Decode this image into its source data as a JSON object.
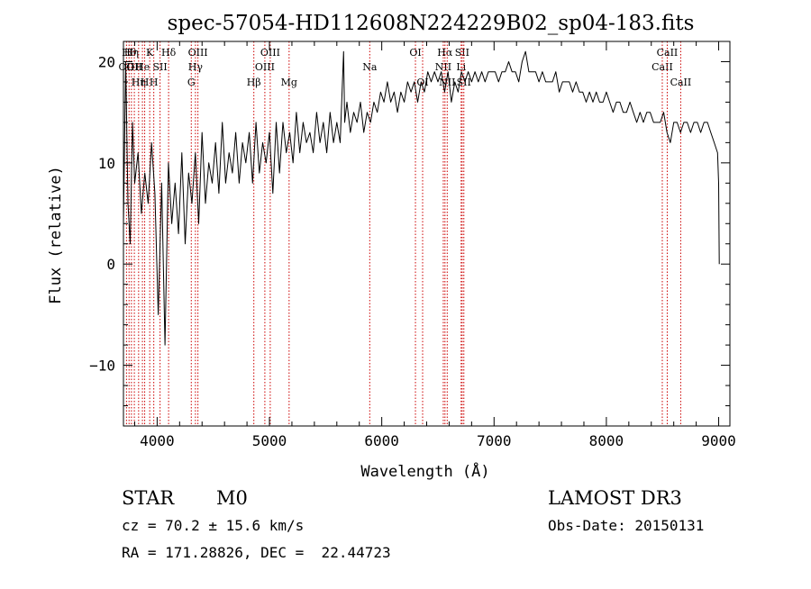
{
  "chart_data": {
    "type": "line",
    "title": "spec-57054-HD112608N224229B02_sp04-183.fits",
    "xlabel": "Wavelength (Å)",
    "ylabel": "Flux (relative)",
    "xlim": [
      3700,
      9100
    ],
    "ylim": [
      -16,
      22
    ],
    "x_ticks": [
      4000,
      5000,
      6000,
      7000,
      8000,
      9000
    ],
    "x_tick_labels": [
      "4000",
      "5000",
      "6000",
      "7000",
      "8000",
      "9000"
    ],
    "y_ticks": [
      -10,
      0,
      10,
      20
    ],
    "y_tick_labels": [
      "−10",
      "0",
      "10",
      "20"
    ],
    "grid": false,
    "line_color": "#000000",
    "marker_line_color": "#cc0000",
    "spectrum_series": {
      "name": "flux",
      "x": [
        3700,
        3720,
        3740,
        3760,
        3780,
        3800,
        3830,
        3860,
        3890,
        3920,
        3950,
        3980,
        4010,
        4040,
        4070,
        4100,
        4130,
        4160,
        4190,
        4220,
        4250,
        4280,
        4310,
        4340,
        4370,
        4400,
        4430,
        4460,
        4490,
        4520,
        4550,
        4580,
        4610,
        4640,
        4670,
        4700,
        4730,
        4760,
        4790,
        4820,
        4850,
        4880,
        4910,
        4940,
        4970,
        5000,
        5030,
        5060,
        5090,
        5120,
        5150,
        5180,
        5210,
        5240,
        5270,
        5300,
        5330,
        5360,
        5390,
        5420,
        5450,
        5480,
        5510,
        5540,
        5570,
        5600,
        5630,
        5660,
        5670,
        5690,
        5720,
        5750,
        5780,
        5810,
        5840,
        5870,
        5900,
        5930,
        5960,
        5990,
        6020,
        6050,
        6080,
        6110,
        6140,
        6170,
        6200,
        6230,
        6260,
        6290,
        6320,
        6350,
        6380,
        6410,
        6440,
        6470,
        6500,
        6530,
        6560,
        6590,
        6620,
        6650,
        6680,
        6710,
        6740,
        6770,
        6800,
        6830,
        6860,
        6890,
        6920,
        6950,
        6980,
        7010,
        7040,
        7070,
        7100,
        7130,
        7160,
        7190,
        7220,
        7250,
        7280,
        7310,
        7340,
        7370,
        7400,
        7430,
        7460,
        7490,
        7520,
        7550,
        7580,
        7610,
        7640,
        7670,
        7700,
        7730,
        7760,
        7790,
        7820,
        7850,
        7880,
        7910,
        7940,
        7970,
        8000,
        8030,
        8060,
        8090,
        8120,
        8150,
        8180,
        8210,
        8240,
        8270,
        8300,
        8330,
        8360,
        8390,
        8420,
        8450,
        8480,
        8510,
        8540,
        8570,
        8600,
        8630,
        8660,
        8690,
        8720,
        8750,
        8780,
        8810,
        8840,
        8870,
        8900,
        8930,
        8960,
        8990,
        9000,
        9005
      ],
      "values": [
        4,
        20,
        6,
        2,
        14,
        8,
        11,
        5,
        9,
        6,
        12,
        7,
        -5,
        8,
        -8,
        10,
        4,
        8,
        3,
        11,
        2,
        9,
        6,
        11,
        4,
        13,
        6,
        10,
        8,
        12,
        7,
        14,
        8,
        11,
        9,
        13,
        8,
        12,
        10,
        13,
        8,
        14,
        9,
        12,
        10,
        13,
        7,
        14,
        9,
        14,
        11,
        13,
        10,
        15,
        11,
        14,
        12,
        13,
        11,
        15,
        12,
        14,
        11,
        15,
        12,
        14,
        12,
        21,
        14,
        16,
        13,
        15,
        14,
        16,
        13,
        15,
        14,
        16,
        15,
        17,
        16,
        18,
        16,
        17,
        15,
        17,
        16,
        18,
        17,
        18,
        16,
        18,
        17,
        19,
        18,
        19,
        18,
        19,
        17,
        19,
        16,
        18,
        17,
        19,
        18,
        19,
        18,
        19,
        18,
        19,
        18,
        19,
        19,
        19,
        18,
        19,
        19,
        20,
        19,
        19,
        18,
        20,
        21,
        19,
        19,
        19,
        18,
        19,
        18,
        18,
        18,
        19,
        17,
        18,
        18,
        18,
        17,
        18,
        17,
        17,
        16,
        17,
        16,
        17,
        16,
        16,
        17,
        16,
        15,
        16,
        16,
        15,
        15,
        16,
        15,
        14,
        15,
        14,
        15,
        15,
        14,
        14,
        14,
        15,
        13,
        12,
        14,
        14,
        13,
        14,
        14,
        13,
        14,
        14,
        13,
        14,
        14,
        13,
        12,
        11,
        8,
        0
      ]
    },
    "line_markers": [
      {
        "x": 3727,
        "row": 1,
        "label": "OII"
      },
      {
        "x": 3750,
        "row": 0,
        "label": "Hθ"
      },
      {
        "x": 3771,
        "row": 0,
        "label": "Hη"
      },
      {
        "x": 3797,
        "row": 1,
        "label": "OII"
      },
      {
        "x": 3835,
        "row": 2,
        "label": "Hη"
      },
      {
        "x": 3869,
        "row": 1,
        "label": "He"
      },
      {
        "x": 3889,
        "row": 2,
        "label": "H"
      },
      {
        "x": 3934,
        "row": 0,
        "label": "K"
      },
      {
        "x": 3970,
        "row": 2,
        "label": "H"
      },
      {
        "x": 4026,
        "row": 1,
        "label": "SII"
      },
      {
        "x": 4102,
        "row": 0,
        "label": "Hδ"
      },
      {
        "x": 4304,
        "row": 2,
        "label": "G"
      },
      {
        "x": 4341,
        "row": 1,
        "label": "Hγ"
      },
      {
        "x": 4363,
        "row": 0,
        "label": "OIII"
      },
      {
        "x": 4861,
        "row": 2,
        "label": "Hβ"
      },
      {
        "x": 4959,
        "row": 1,
        "label": "OIII"
      },
      {
        "x": 5007,
        "row": 0,
        "label": "OIII"
      },
      {
        "x": 5175,
        "row": 2,
        "label": "Mg"
      },
      {
        "x": 5893,
        "row": 1,
        "label": "Na"
      },
      {
        "x": 6300,
        "row": 0,
        "label": "OI"
      },
      {
        "x": 6364,
        "row": 2,
        "label": "OI"
      },
      {
        "x": 6548,
        "row": 1,
        "label": "NII"
      },
      {
        "x": 6563,
        "row": 0,
        "label": "Hα"
      },
      {
        "x": 6583,
        "row": 2,
        "label": "NII"
      },
      {
        "x": 6707,
        "row": 1,
        "label": "Li"
      },
      {
        "x": 6716,
        "row": 0,
        "label": "SII"
      },
      {
        "x": 6731,
        "row": 2,
        "label": "SII"
      },
      {
        "x": 8498,
        "row": 1,
        "label": "CaII"
      },
      {
        "x": 8542,
        "row": 0,
        "label": "CaII"
      },
      {
        "x": 8662,
        "row": 2,
        "label": "CaII"
      }
    ]
  },
  "info": {
    "class_label": "STAR",
    "subclass": "M0",
    "survey": "LAMOST DR3",
    "cz": "cz = 70.2 ± 15.6 km/s",
    "obs_date": "Obs-Date: 20150131",
    "coords": "RA = 171.28826, DEC =  22.44723"
  }
}
